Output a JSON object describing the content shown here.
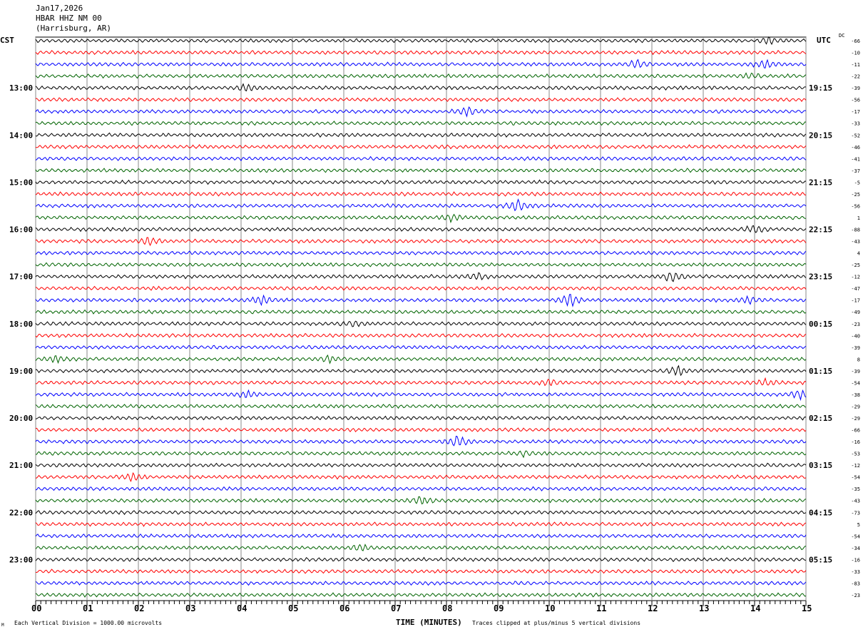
{
  "header": {
    "date": "Jan17,2026",
    "station": "HBAR HHZ NM 00",
    "location": "(Harrisburg, AR)"
  },
  "left_zone": "CST",
  "right_zone": "UTC",
  "dc_label": "DC",
  "footer": {
    "scale_note": "Each Vertical Division = 1000.00 microvolts",
    "clip_note": "Traces clipped at plus/minus 5 vertical divisions",
    "corner_mark": "M"
  },
  "chart_data": {
    "type": "line",
    "title": "HBAR HHZ NM 00 helicorder",
    "xlabel": "TIME (MINUTES)",
    "xlim": [
      0,
      15
    ],
    "x_ticks": [
      "00",
      "01",
      "02",
      "03",
      "04",
      "05",
      "06",
      "07",
      "08",
      "09",
      "10",
      "11",
      "12",
      "13",
      "14",
      "15"
    ],
    "trace_colors": [
      "#000000",
      "#ff0000",
      "#0000ff",
      "#006400"
    ],
    "traces_per_hour": 4,
    "trace_count": 48,
    "cst_labels": [
      "13:00",
      "14:00",
      "15:00",
      "16:00",
      "17:00",
      "18:00",
      "19:00",
      "20:00",
      "21:00",
      "22:00",
      "23:00"
    ],
    "utc_labels": [
      "19:15",
      "20:15",
      "21:15",
      "22:15",
      "23:15",
      "00:15",
      "01:15",
      "02:15",
      "03:15",
      "04:15",
      "05:15"
    ],
    "dc_offsets": [
      -66,
      -10,
      -11,
      -22,
      -39,
      -56,
      -17,
      -33,
      -52,
      -46,
      -41,
      -37,
      -5,
      -25,
      -56,
      1,
      -88,
      -43,
      4,
      -25,
      -12,
      -47,
      -17,
      -49,
      -23,
      -40,
      -39,
      8,
      -39,
      -54,
      -38,
      -29,
      -29,
      -66,
      -16,
      -53,
      -12,
      -54,
      -35,
      -43,
      -73,
      5,
      -54,
      -34,
      -16,
      -33,
      -83,
      -23
    ],
    "events": [
      {
        "trace": 0,
        "minute": 14.3,
        "amp": 5
      },
      {
        "trace": 3,
        "minute": 13.9,
        "amp": 4
      },
      {
        "trace": 2,
        "minute": 11.7,
        "amp": 6
      },
      {
        "trace": 2,
        "minute": 14.2,
        "amp": 6
      },
      {
        "trace": 4,
        "minute": 4.1,
        "amp": 5
      },
      {
        "trace": 6,
        "minute": 8.4,
        "amp": 7
      },
      {
        "trace": 14,
        "minute": 9.4,
        "amp": 9
      },
      {
        "trace": 15,
        "minute": 8.1,
        "amp": 5
      },
      {
        "trace": 17,
        "minute": 2.2,
        "amp": 6
      },
      {
        "trace": 16,
        "minute": 14.0,
        "amp": 6
      },
      {
        "trace": 20,
        "minute": 8.6,
        "amp": 5
      },
      {
        "trace": 20,
        "minute": 12.4,
        "amp": 8
      },
      {
        "trace": 22,
        "minute": 4.4,
        "amp": 7
      },
      {
        "trace": 22,
        "minute": 10.4,
        "amp": 10
      },
      {
        "trace": 22,
        "minute": 13.9,
        "amp": 5
      },
      {
        "trace": 24,
        "minute": 6.2,
        "amp": 4
      },
      {
        "trace": 27,
        "minute": 5.7,
        "amp": 5
      },
      {
        "trace": 27,
        "minute": 0.4,
        "amp": 4
      },
      {
        "trace": 28,
        "minute": 12.5,
        "amp": 8
      },
      {
        "trace": 29,
        "minute": 10.0,
        "amp": 5
      },
      {
        "trace": 29,
        "minute": 14.2,
        "amp": 5
      },
      {
        "trace": 30,
        "minute": 4.1,
        "amp": 5
      },
      {
        "trace": 30,
        "minute": 14.9,
        "amp": 7
      },
      {
        "trace": 34,
        "minute": 8.2,
        "amp": 10
      },
      {
        "trace": 35,
        "minute": 9.5,
        "amp": 4
      },
      {
        "trace": 37,
        "minute": 1.9,
        "amp": 6
      },
      {
        "trace": 39,
        "minute": 7.5,
        "amp": 6
      },
      {
        "trace": 43,
        "minute": 6.3,
        "amp": 5
      }
    ]
  }
}
